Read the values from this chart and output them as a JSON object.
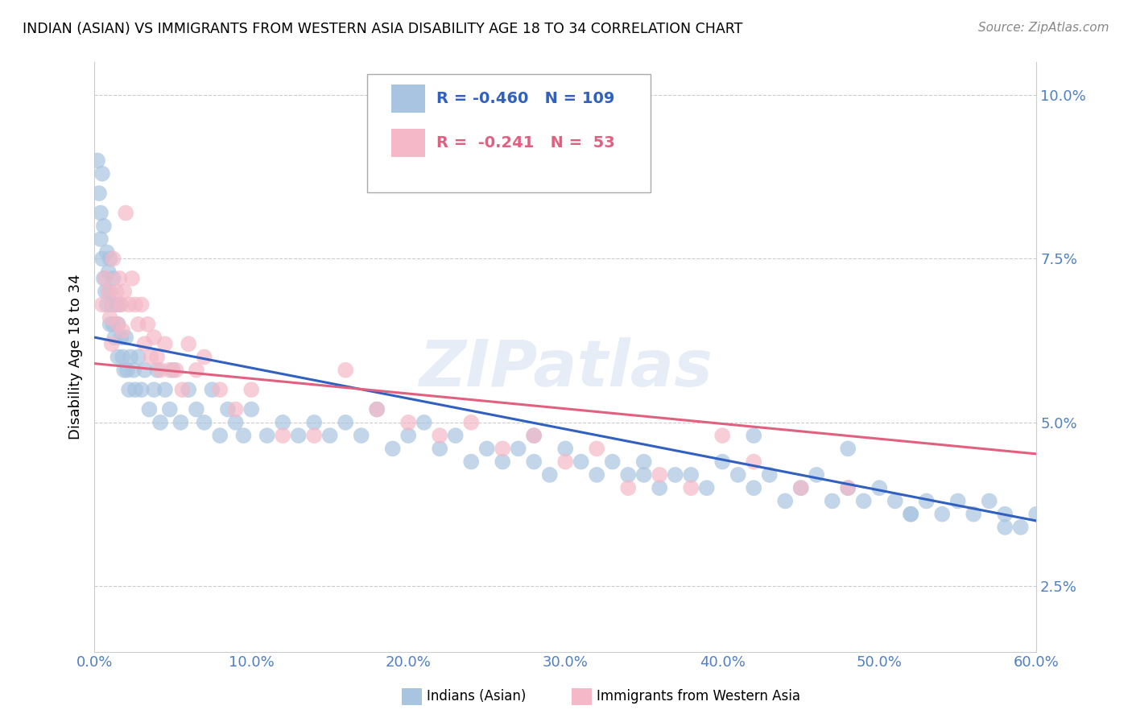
{
  "title": "INDIAN (ASIAN) VS IMMIGRANTS FROM WESTERN ASIA DISABILITY AGE 18 TO 34 CORRELATION CHART",
  "source": "Source: ZipAtlas.com",
  "ylabel": "Disability Age 18 to 34",
  "watermark": "ZIPatlas",
  "xlim": [
    0.0,
    0.6
  ],
  "ylim": [
    0.015,
    0.105
  ],
  "yticks": [
    0.025,
    0.05,
    0.075,
    0.1
  ],
  "ytick_labels": [
    "2.5%",
    "5.0%",
    "7.5%",
    "10.0%"
  ],
  "xticks": [
    0.0,
    0.1,
    0.2,
    0.3,
    0.4,
    0.5,
    0.6
  ],
  "xtick_labels": [
    "0.0%",
    "10.0%",
    "20.0%",
    "30.0%",
    "40.0%",
    "50.0%",
    "60.0%"
  ],
  "blue_R": -0.46,
  "blue_N": 109,
  "pink_R": -0.241,
  "pink_N": 53,
  "blue_color": "#a8c4e0",
  "pink_color": "#f4b8c8",
  "blue_line_color": "#3060c0",
  "pink_line_color": "#e06080",
  "axis_color": "#5080c0",
  "legend_label_blue": "Indians (Asian)",
  "legend_label_pink": "Immigrants from Western Asia",
  "blue_x": [
    0.002,
    0.003,
    0.004,
    0.004,
    0.005,
    0.005,
    0.006,
    0.006,
    0.007,
    0.008,
    0.008,
    0.009,
    0.01,
    0.01,
    0.01,
    0.011,
    0.012,
    0.012,
    0.013,
    0.014,
    0.015,
    0.015,
    0.016,
    0.017,
    0.018,
    0.019,
    0.02,
    0.021,
    0.022,
    0.023,
    0.025,
    0.026,
    0.028,
    0.03,
    0.032,
    0.035,
    0.038,
    0.04,
    0.042,
    0.045,
    0.048,
    0.05,
    0.055,
    0.06,
    0.065,
    0.07,
    0.075,
    0.08,
    0.085,
    0.09,
    0.095,
    0.1,
    0.11,
    0.12,
    0.13,
    0.14,
    0.15,
    0.16,
    0.17,
    0.18,
    0.19,
    0.2,
    0.21,
    0.22,
    0.23,
    0.24,
    0.25,
    0.26,
    0.27,
    0.28,
    0.29,
    0.3,
    0.31,
    0.32,
    0.33,
    0.34,
    0.35,
    0.36,
    0.37,
    0.38,
    0.39,
    0.4,
    0.41,
    0.42,
    0.43,
    0.44,
    0.45,
    0.46,
    0.47,
    0.48,
    0.49,
    0.5,
    0.51,
    0.52,
    0.53,
    0.54,
    0.55,
    0.56,
    0.57,
    0.58,
    0.59,
    0.6,
    0.28,
    0.35,
    0.42,
    0.48,
    0.52,
    0.58,
    0.62
  ],
  "blue_y": [
    0.09,
    0.085,
    0.082,
    0.078,
    0.075,
    0.088,
    0.072,
    0.08,
    0.07,
    0.076,
    0.068,
    0.073,
    0.07,
    0.065,
    0.075,
    0.068,
    0.065,
    0.072,
    0.063,
    0.068,
    0.065,
    0.06,
    0.068,
    0.063,
    0.06,
    0.058,
    0.063,
    0.058,
    0.055,
    0.06,
    0.058,
    0.055,
    0.06,
    0.055,
    0.058,
    0.052,
    0.055,
    0.058,
    0.05,
    0.055,
    0.052,
    0.058,
    0.05,
    0.055,
    0.052,
    0.05,
    0.055,
    0.048,
    0.052,
    0.05,
    0.048,
    0.052,
    0.048,
    0.05,
    0.048,
    0.05,
    0.048,
    0.05,
    0.048,
    0.052,
    0.046,
    0.048,
    0.05,
    0.046,
    0.048,
    0.044,
    0.046,
    0.044,
    0.046,
    0.044,
    0.042,
    0.046,
    0.044,
    0.042,
    0.044,
    0.042,
    0.044,
    0.04,
    0.042,
    0.042,
    0.04,
    0.044,
    0.042,
    0.04,
    0.042,
    0.038,
    0.04,
    0.042,
    0.038,
    0.04,
    0.038,
    0.04,
    0.038,
    0.036,
    0.038,
    0.036,
    0.038,
    0.036,
    0.038,
    0.036,
    0.034,
    0.036,
    0.048,
    0.042,
    0.048,
    0.046,
    0.036,
    0.034,
    0.04
  ],
  "pink_x": [
    0.005,
    0.007,
    0.009,
    0.01,
    0.011,
    0.012,
    0.013,
    0.014,
    0.015,
    0.016,
    0.017,
    0.018,
    0.019,
    0.02,
    0.022,
    0.024,
    0.026,
    0.028,
    0.03,
    0.032,
    0.034,
    0.036,
    0.038,
    0.04,
    0.042,
    0.045,
    0.048,
    0.052,
    0.056,
    0.06,
    0.065,
    0.07,
    0.08,
    0.09,
    0.1,
    0.12,
    0.14,
    0.16,
    0.18,
    0.2,
    0.22,
    0.24,
    0.26,
    0.28,
    0.3,
    0.32,
    0.34,
    0.36,
    0.38,
    0.4,
    0.42,
    0.45,
    0.48
  ],
  "pink_y": [
    0.068,
    0.072,
    0.07,
    0.066,
    0.062,
    0.075,
    0.068,
    0.07,
    0.065,
    0.072,
    0.068,
    0.064,
    0.07,
    0.082,
    0.068,
    0.072,
    0.068,
    0.065,
    0.068,
    0.062,
    0.065,
    0.06,
    0.063,
    0.06,
    0.058,
    0.062,
    0.058,
    0.058,
    0.055,
    0.062,
    0.058,
    0.06,
    0.055,
    0.052,
    0.055,
    0.048,
    0.048,
    0.058,
    0.052,
    0.05,
    0.048,
    0.05,
    0.046,
    0.048,
    0.044,
    0.046,
    0.04,
    0.042,
    0.04,
    0.048,
    0.044,
    0.04,
    0.04
  ]
}
